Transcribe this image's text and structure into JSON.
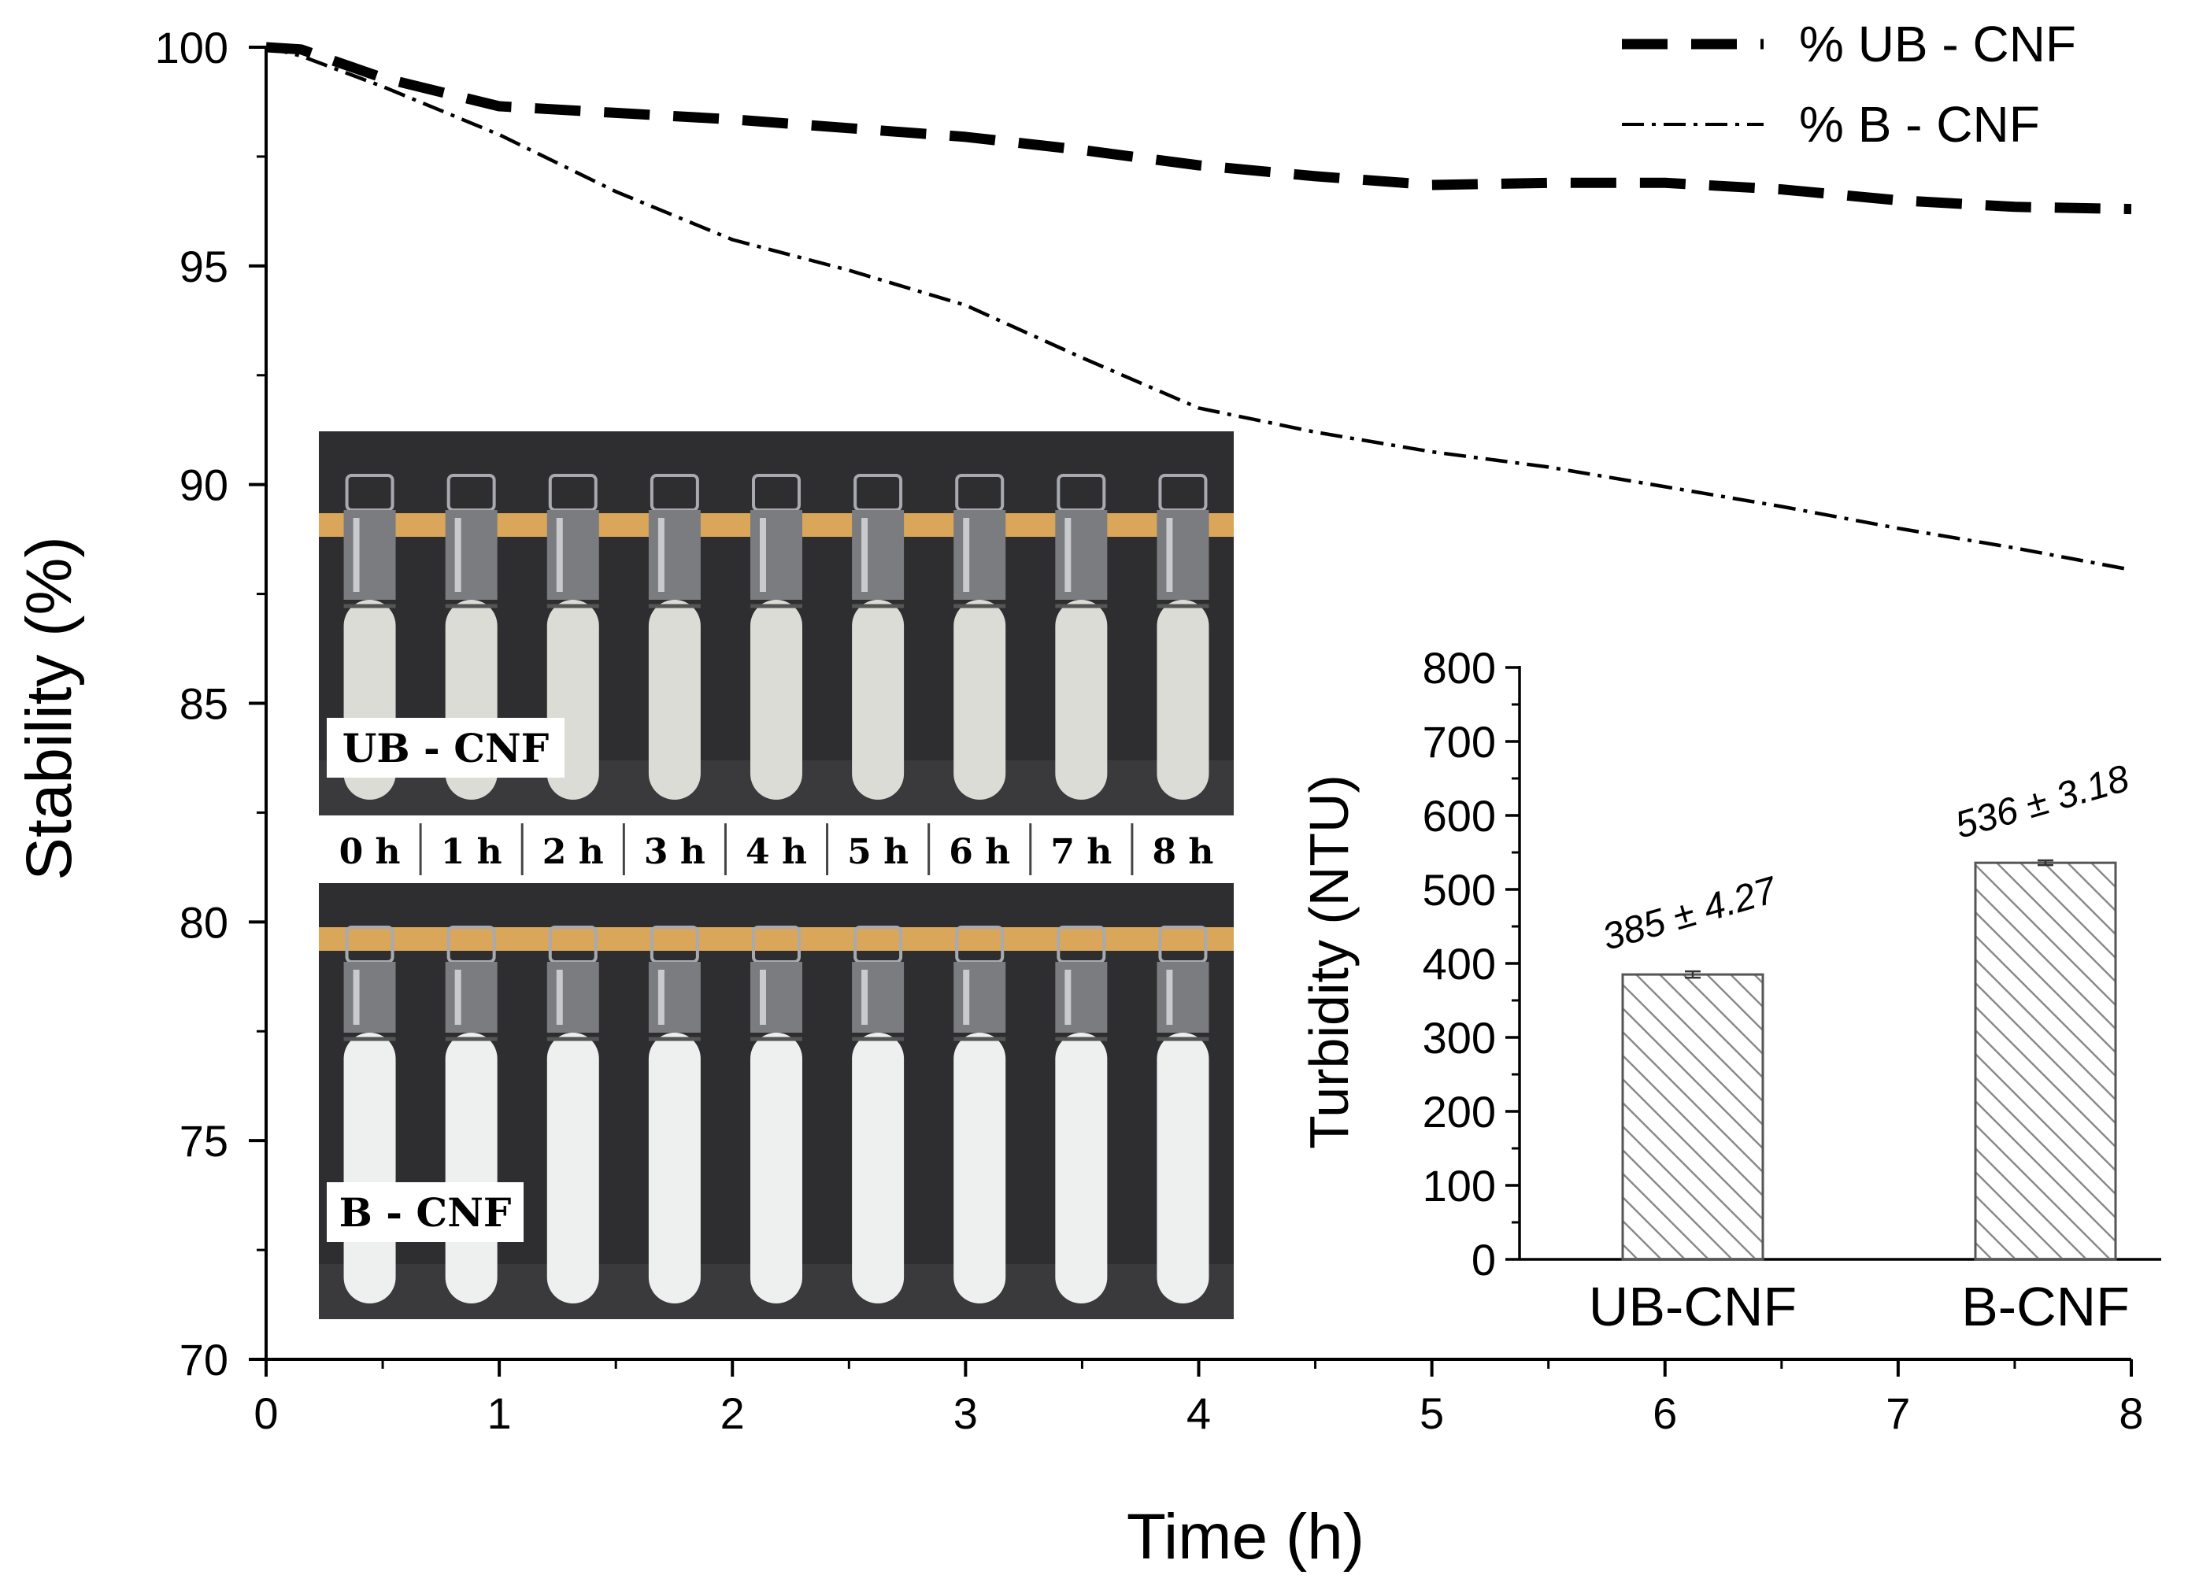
{
  "chart_data": [
    {
      "type": "line",
      "title": "",
      "xlabel": "Time (h)",
      "ylabel": "Stability (%)",
      "xlim": [
        0,
        8
      ],
      "ylim": [
        70,
        100
      ],
      "xticks": [
        "0",
        "1",
        "2",
        "3",
        "4",
        "5",
        "6",
        "7",
        "8"
      ],
      "yticks": [
        "70",
        "75",
        "80",
        "85",
        "90",
        "95",
        "100"
      ],
      "grid": false,
      "legend_position": "top-right",
      "series": [
        {
          "name": "% UB - CNF",
          "style": "dashed",
          "x": [
            0,
            0.15,
            0.5,
            1.0,
            1.5,
            2.0,
            2.5,
            3.0,
            3.5,
            4.0,
            4.5,
            5.0,
            5.5,
            6.0,
            6.5,
            7.0,
            7.5,
            8.0
          ],
          "y": [
            100,
            99.95,
            99.3,
            98.65,
            98.5,
            98.35,
            98.15,
            97.95,
            97.65,
            97.3,
            97.05,
            96.85,
            96.9,
            96.9,
            96.75,
            96.5,
            96.35,
            96.3
          ]
        },
        {
          "name": "% B - CNF",
          "style": "dash-dot",
          "x": [
            0,
            0.15,
            0.5,
            1.0,
            1.5,
            2.0,
            2.5,
            3.0,
            3.5,
            4.0,
            4.5,
            5.0,
            5.5,
            6.0,
            6.5,
            7.0,
            7.5,
            8.0
          ],
          "y": [
            100,
            99.8,
            99.1,
            98.0,
            96.7,
            95.6,
            94.9,
            94.1,
            92.9,
            91.75,
            91.2,
            90.75,
            90.4,
            89.95,
            89.5,
            89.0,
            88.55,
            88.05
          ]
        }
      ]
    },
    {
      "type": "bar",
      "title": "",
      "xlabel": "",
      "ylabel": "Turbidity (NTU)",
      "ylim": [
        0,
        800
      ],
      "yticks": [
        "0",
        "100",
        "200",
        "300",
        "400",
        "500",
        "600",
        "700",
        "800"
      ],
      "categories": [
        "UB-CNF",
        "B-CNF"
      ],
      "values": [
        385,
        536
      ],
      "errors": [
        4.27,
        3.18
      ],
      "data_labels": [
        "385 ± 4.27",
        "536 ± 3.18"
      ],
      "pattern": "diagonal-hatch"
    }
  ],
  "photo_inset": {
    "top_label": "UB - CNF",
    "bottom_label": "B - CNF",
    "time_labels": [
      "0 h",
      "1 h",
      "2 h",
      "3 h",
      "4 h",
      "5 h",
      "6 h",
      "7 h",
      "8 h"
    ],
    "colors": {
      "background": "#2e2e30",
      "tape": "#d9a65a",
      "liquid": "#dcdcd6",
      "liquid_b": "#eef0f0",
      "glass": "#7a7c80"
    }
  }
}
